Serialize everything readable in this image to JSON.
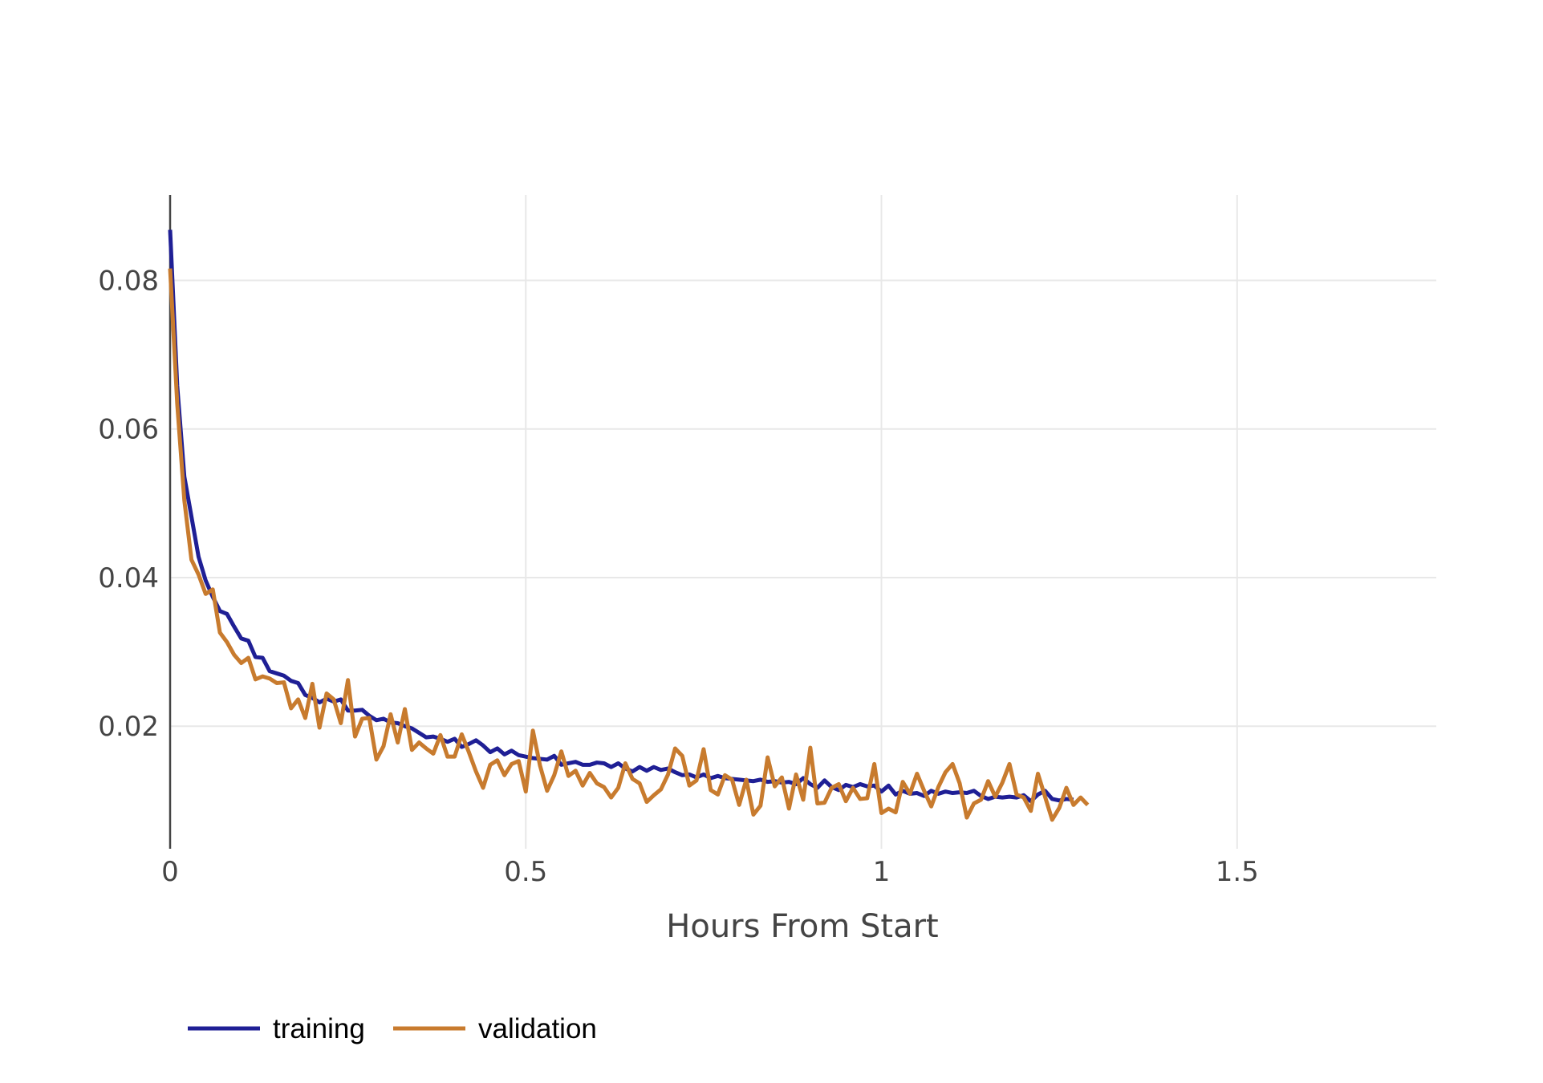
{
  "chart_data": {
    "type": "line",
    "title": "",
    "xlabel": "Hours From Start",
    "ylabel": "",
    "xlim": [
      0,
      1.78
    ],
    "ylim": [
      0.0035,
      0.0915
    ],
    "x_ticks": [
      {
        "value": 0,
        "label": "0"
      },
      {
        "value": 0.5,
        "label": "0.5"
      },
      {
        "value": 1,
        "label": "1"
      },
      {
        "value": 1.5,
        "label": "1.5"
      }
    ],
    "y_ticks": [
      {
        "value": 0.02,
        "label": "0.02"
      },
      {
        "value": 0.04,
        "label": "0.04"
      },
      {
        "value": 0.06,
        "label": "0.06"
      },
      {
        "value": 0.08,
        "label": "0.08"
      }
    ],
    "grid": true,
    "legend_position": "bottom-left",
    "x_step": 0.01,
    "series": [
      {
        "name": "training",
        "color": "#1f1f95",
        "values": [
          0.0868,
          0.0658,
          0.0536,
          0.0482,
          0.0428,
          0.0396,
          0.0374,
          0.0355,
          0.0351,
          0.0334,
          0.0318,
          0.0315,
          0.0293,
          0.0292,
          0.0274,
          0.0271,
          0.0268,
          0.0261,
          0.0258,
          0.0242,
          0.0238,
          0.0232,
          0.0237,
          0.0233,
          0.0236,
          0.0221,
          0.0221,
          0.0222,
          0.0214,
          0.0208,
          0.021,
          0.0205,
          0.0204,
          0.02,
          0.0197,
          0.0191,
          0.0185,
          0.0186,
          0.0183,
          0.0179,
          0.0183,
          0.0172,
          0.0176,
          0.0181,
          0.0174,
          0.0165,
          0.017,
          0.0162,
          0.0167,
          0.0161,
          0.0159,
          0.0157,
          0.0156,
          0.0155,
          0.016,
          0.0148,
          0.015,
          0.0152,
          0.0148,
          0.0148,
          0.0151,
          0.015,
          0.0145,
          0.015,
          0.0143,
          0.0139,
          0.0145,
          0.014,
          0.0145,
          0.0141,
          0.0143,
          0.0138,
          0.0134,
          0.0135,
          0.0131,
          0.0135,
          0.013,
          0.0133,
          0.013,
          0.0129,
          0.0128,
          0.0127,
          0.0126,
          0.0128,
          0.0125,
          0.0126,
          0.0124,
          0.0125,
          0.0122,
          0.013,
          0.0122,
          0.0117,
          0.0127,
          0.0118,
          0.0114,
          0.0121,
          0.0118,
          0.0122,
          0.0119,
          0.012,
          0.0112,
          0.012,
          0.0108,
          0.0113,
          0.0109,
          0.011,
          0.0106,
          0.0113,
          0.0109,
          0.0112,
          0.011,
          0.0111,
          0.011,
          0.0113,
          0.0106,
          0.0102,
          0.0105,
          0.0104,
          0.0105,
          0.0104,
          0.0107,
          0.0099,
          0.0108,
          0.0113,
          0.0102,
          0.01,
          0.0102,
          0.0101
        ]
      },
      {
        "name": "validation",
        "color": "#c87b2e",
        "values": [
          0.0816,
          0.0634,
          0.0504,
          0.0424,
          0.0404,
          0.0378,
          0.0384,
          0.0326,
          0.0313,
          0.0296,
          0.0285,
          0.0292,
          0.0263,
          0.0267,
          0.0264,
          0.0258,
          0.0259,
          0.0224,
          0.0236,
          0.0211,
          0.0257,
          0.0198,
          0.0244,
          0.0236,
          0.0204,
          0.0262,
          0.0186,
          0.021,
          0.0211,
          0.0155,
          0.0173,
          0.0216,
          0.0178,
          0.0223,
          0.0168,
          0.0178,
          0.017,
          0.0163,
          0.0188,
          0.0159,
          0.0159,
          0.0189,
          0.0165,
          0.0139,
          0.0117,
          0.0148,
          0.0154,
          0.0134,
          0.0149,
          0.0153,
          0.0112,
          0.0194,
          0.0147,
          0.0113,
          0.0134,
          0.0166,
          0.0133,
          0.014,
          0.012,
          0.0137,
          0.0123,
          0.0118,
          0.0104,
          0.0117,
          0.015,
          0.0129,
          0.0123,
          0.0098,
          0.0107,
          0.0115,
          0.0135,
          0.017,
          0.016,
          0.012,
          0.0127,
          0.0169,
          0.0114,
          0.0108,
          0.0134,
          0.0128,
          0.0094,
          0.0128,
          0.0081,
          0.0093,
          0.0158,
          0.0119,
          0.0131,
          0.0089,
          0.0135,
          0.0101,
          0.0171,
          0.0096,
          0.0097,
          0.0117,
          0.0122,
          0.0099,
          0.0117,
          0.0102,
          0.0103,
          0.0149,
          0.0083,
          0.0089,
          0.0084,
          0.0125,
          0.0109,
          0.0136,
          0.0113,
          0.0092,
          0.0118,
          0.0138,
          0.0149,
          0.0123,
          0.0077,
          0.0096,
          0.0101,
          0.0126,
          0.0105,
          0.0124,
          0.0149,
          0.0108,
          0.0104,
          0.0086,
          0.0136,
          0.0105,
          0.0074,
          0.009,
          0.0117,
          0.0094,
          0.0104,
          0.0094
        ]
      }
    ]
  }
}
